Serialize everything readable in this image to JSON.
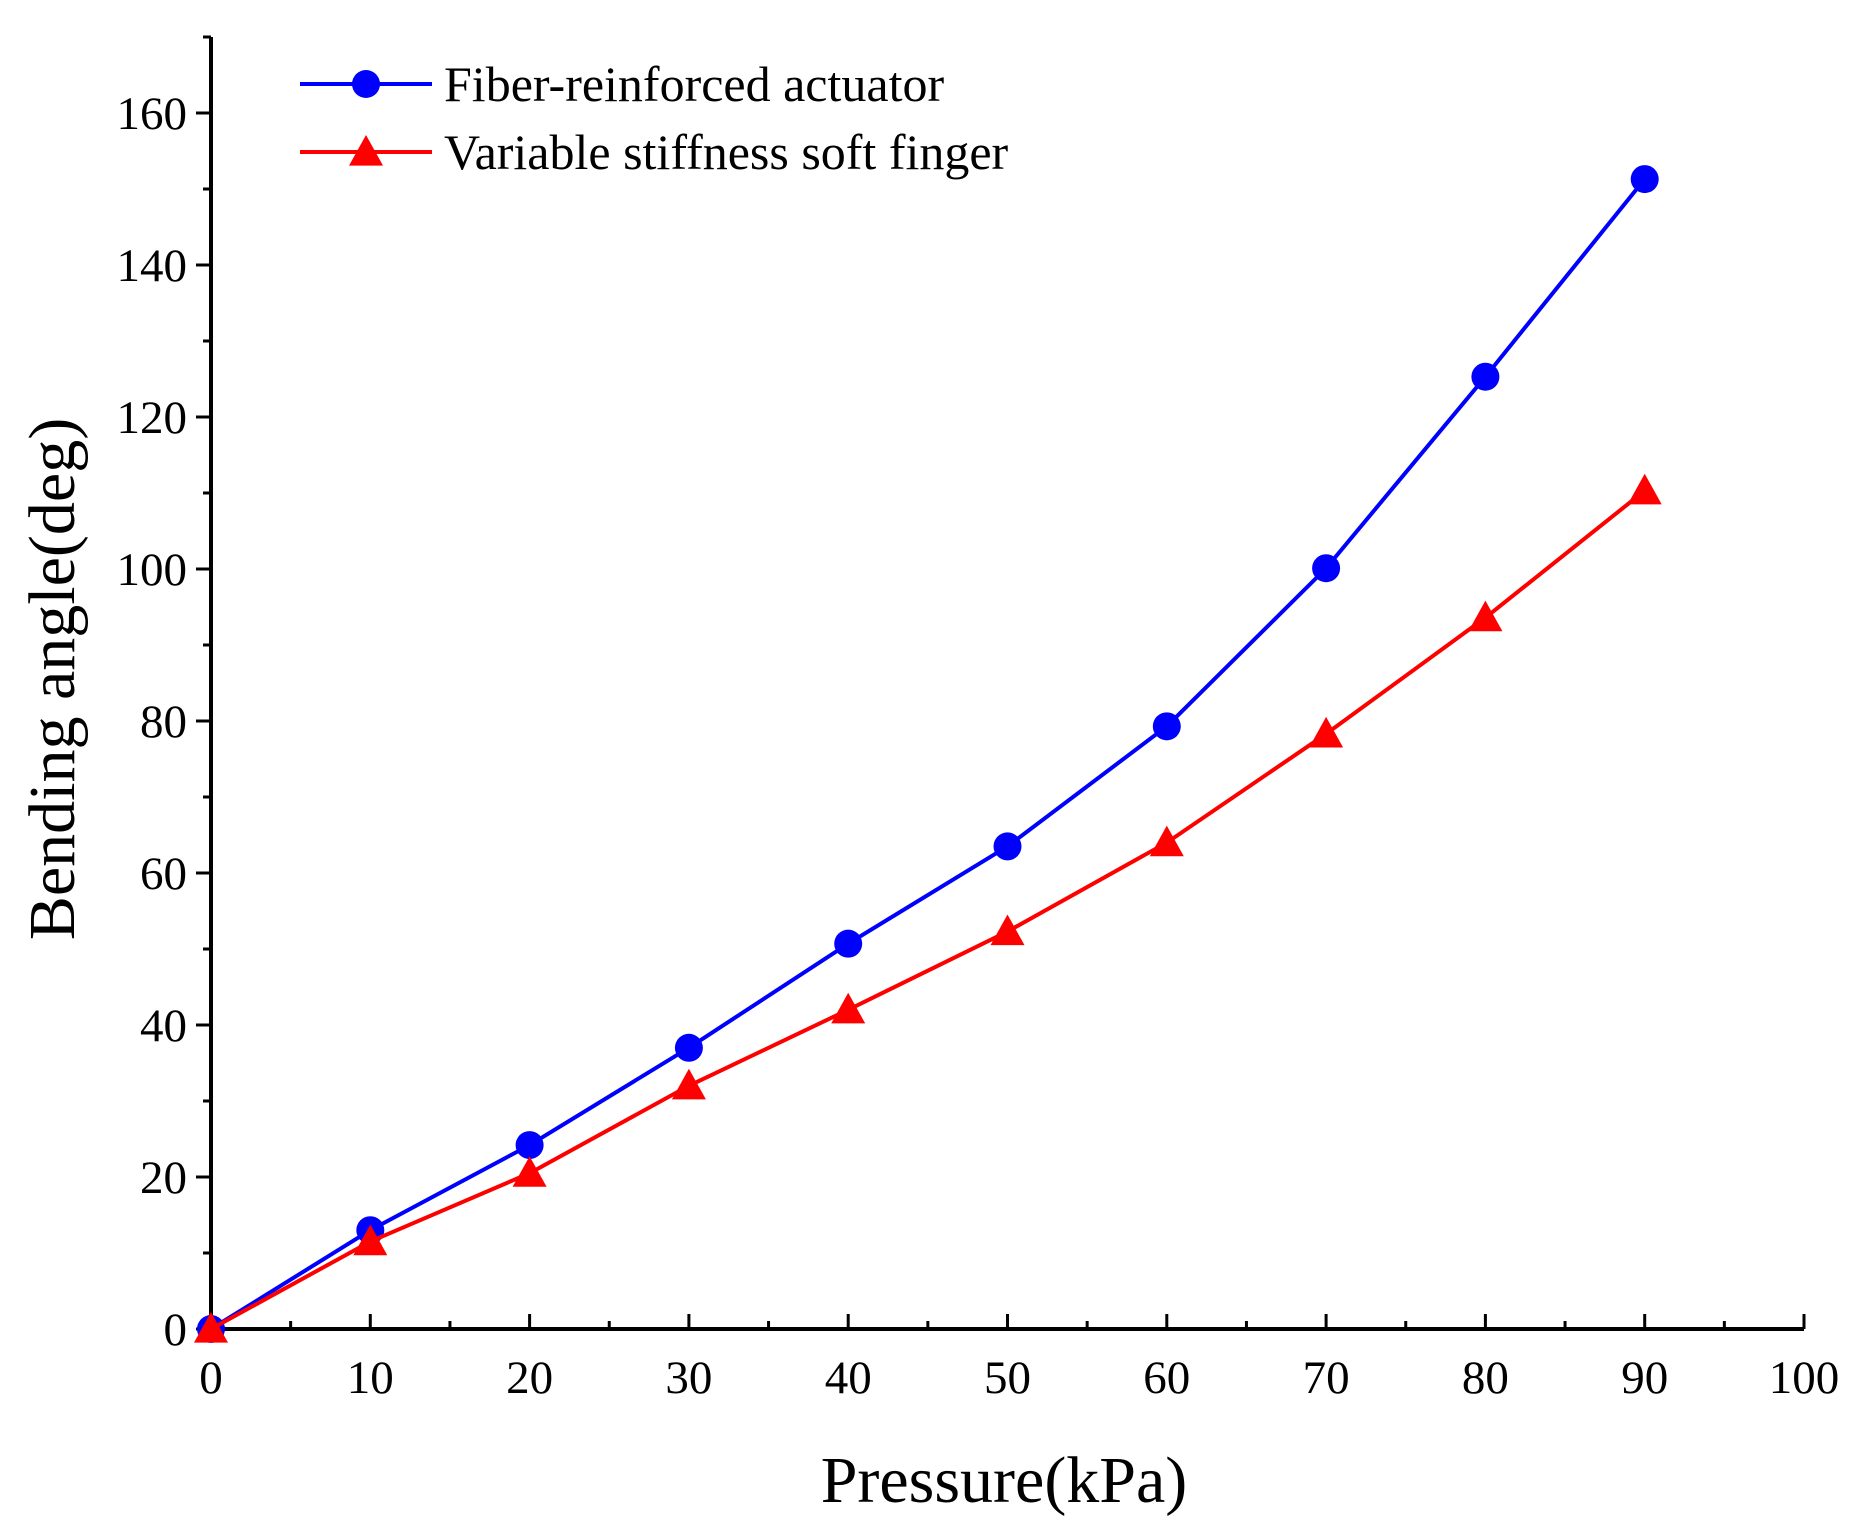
{
  "chart_data": {
    "type": "line",
    "title": "",
    "xlabel": "Pressure(kPa)",
    "ylabel": "Bending angle(deg)",
    "xlim": [
      0,
      100
    ],
    "ylim": [
      0,
      170
    ],
    "x_ticks": [
      0,
      10,
      20,
      30,
      40,
      50,
      60,
      70,
      80,
      90,
      100
    ],
    "y_ticks": [
      0,
      20,
      40,
      60,
      80,
      100,
      120,
      140,
      160
    ],
    "grid": false,
    "legend_position": "top-left",
    "x": [
      0,
      10,
      20,
      30,
      40,
      50,
      60,
      70,
      80,
      90
    ],
    "series": [
      {
        "name": "Fiber-reinforced actuator",
        "color": "#0000ff",
        "marker": "circle",
        "values": [
          0,
          13,
          24.2,
          37,
          50.7,
          63.5,
          79.3,
          100.1,
          125.3,
          151.3
        ]
      },
      {
        "name": "Variable stiffness soft finger",
        "color": "#ff0000",
        "marker": "triangle",
        "values": [
          0,
          11.5,
          20.5,
          32,
          42,
          52.3,
          64,
          78.3,
          93.6,
          110.3
        ]
      }
    ]
  }
}
